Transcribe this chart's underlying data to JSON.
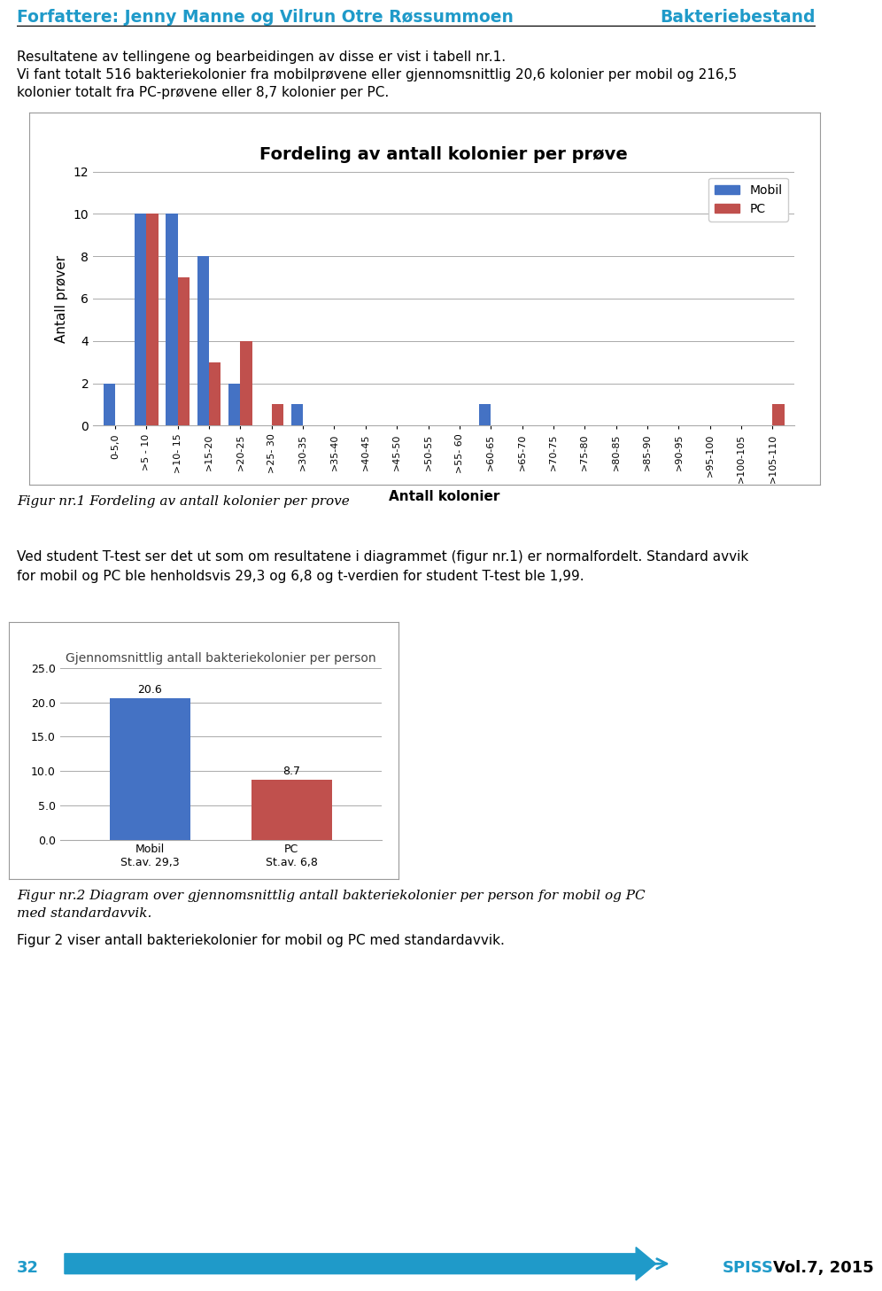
{
  "header_left": "Forfattere: Jenny Manne og Vilrun Otre Røssummoen",
  "header_right": "Bakteriebestand",
  "header_color": "#1F9AC9",
  "body_text1": "Resultatene av tellingene og bearbeidingen av disse er vist i tabell nr.1.",
  "body_text2": "Vi fant totalt 516 bakteriekolonier fra mobilprøvene eller gjennomsnittlig 20,6 kolonier per mobil og 216,5",
  "body_text3": "kolonier totalt fra PC-prøvene eller 8,7 kolonier per PC.",
  "title1": "Fordeling av antall kolonier per prøve",
  "ylabel1": "Antall prøver",
  "xlabel1": "Antall kolonier",
  "categories_display": [
    "0-5,0",
    ">5 - 10",
    ">10- 15",
    ">15-20",
    ">20-25",
    ">25- 30",
    ">30-35",
    ">35-40",
    ">40-45",
    ">45-50",
    ">50-55",
    ">55- 60",
    ">60-65",
    ">65-70",
    ">70-75",
    ">75-80",
    ">80-85",
    ">85-90",
    ">90-95",
    ">95-100",
    ">100-105",
    ">105-110"
  ],
  "mobil": [
    2,
    10,
    10,
    8,
    2,
    0,
    1,
    0,
    0,
    0,
    0,
    0,
    1,
    0,
    0,
    0,
    0,
    0,
    0,
    0,
    0,
    0
  ],
  "pc": [
    0,
    10,
    7,
    3,
    4,
    1,
    0,
    0,
    0,
    0,
    0,
    0,
    0,
    0,
    0,
    0,
    0,
    0,
    0,
    0,
    0,
    1
  ],
  "mobil_color": "#4472C4",
  "pc_color": "#C0504D",
  "ylim1": [
    0,
    12
  ],
  "yticks1": [
    0,
    2,
    4,
    6,
    8,
    10,
    12
  ],
  "legend_mobil": "Mobil",
  "legend_pc": "PC",
  "fig_caption1": "Figur nr.1 Fordeling av antall kolonier per prove",
  "body_text4": "Ved student T-test ser det ut som om resultatene i diagrammet (figur nr.1) er normalfordelt. Standard avvik",
  "body_text5": "for mobil og PC ble henholdsvis 29,3 og 6,8 og t-verdien for student T-test ble 1,99.",
  "title2": "Gjennomsnittlig antall bakteriekolonier per person",
  "bar2_labels": [
    "Mobil",
    "PC"
  ],
  "bar2_sublabels": [
    "St.av. 29,3",
    "St.av. 6,8"
  ],
  "bar2_values": [
    20.6,
    8.7
  ],
  "bar2_colors": [
    "#4472C4",
    "#C0504D"
  ],
  "bar2_ylim": [
    0,
    25
  ],
  "bar2_yticks": [
    0.0,
    5.0,
    10.0,
    15.0,
    20.0,
    25.0
  ],
  "fig_caption2a": "Figur nr.2 Diagram over gjennomsnittlig antall bakteriekolonier per person for mobil og PC",
  "fig_caption2b": "med standardavvik.",
  "body_text6": "Figur 2 viser antall bakteriekolonier for mobil og PC med standardavvik.",
  "footer_num": "32",
  "footer_spiss": "SPISS",
  "footer_vol": "Vol.7, 2015",
  "footer_color": "#1F9AC9",
  "arrow_color": "#1F9AC9",
  "text_color": "#000000",
  "body_font_size": 11,
  "chart1_border_color": "#999999"
}
